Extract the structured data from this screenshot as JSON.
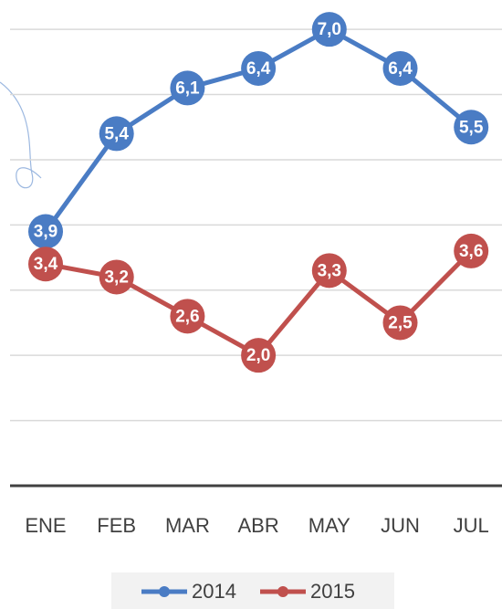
{
  "chart_data": {
    "type": "line",
    "categories": [
      "ENE",
      "FEB",
      "MAR",
      "ABR",
      "MAY",
      "JUN",
      "JUL"
    ],
    "series": [
      {
        "name": "2014",
        "color": "#4a7cc4",
        "values": [
          3.9,
          5.4,
          6.1,
          6.4,
          7.0,
          6.4,
          5.5
        ],
        "value_labels": [
          "3,9",
          "5,4",
          "6,1",
          "6,4",
          "7,0",
          "6,4",
          "5,5"
        ]
      },
      {
        "name": "2015",
        "color": "#c0504d",
        "values": [
          3.4,
          3.2,
          2.6,
          2.0,
          3.3,
          2.5,
          3.6
        ],
        "value_labels": [
          "3,4",
          "3,2",
          "2,6",
          "2,0",
          "3,3",
          "2,5",
          "3,6"
        ]
      }
    ],
    "ylim": [
      0,
      7.45
    ],
    "yticks": [
      0,
      1,
      2,
      3,
      4,
      5,
      6,
      7
    ],
    "grid": true,
    "legend": "bottom"
  }
}
